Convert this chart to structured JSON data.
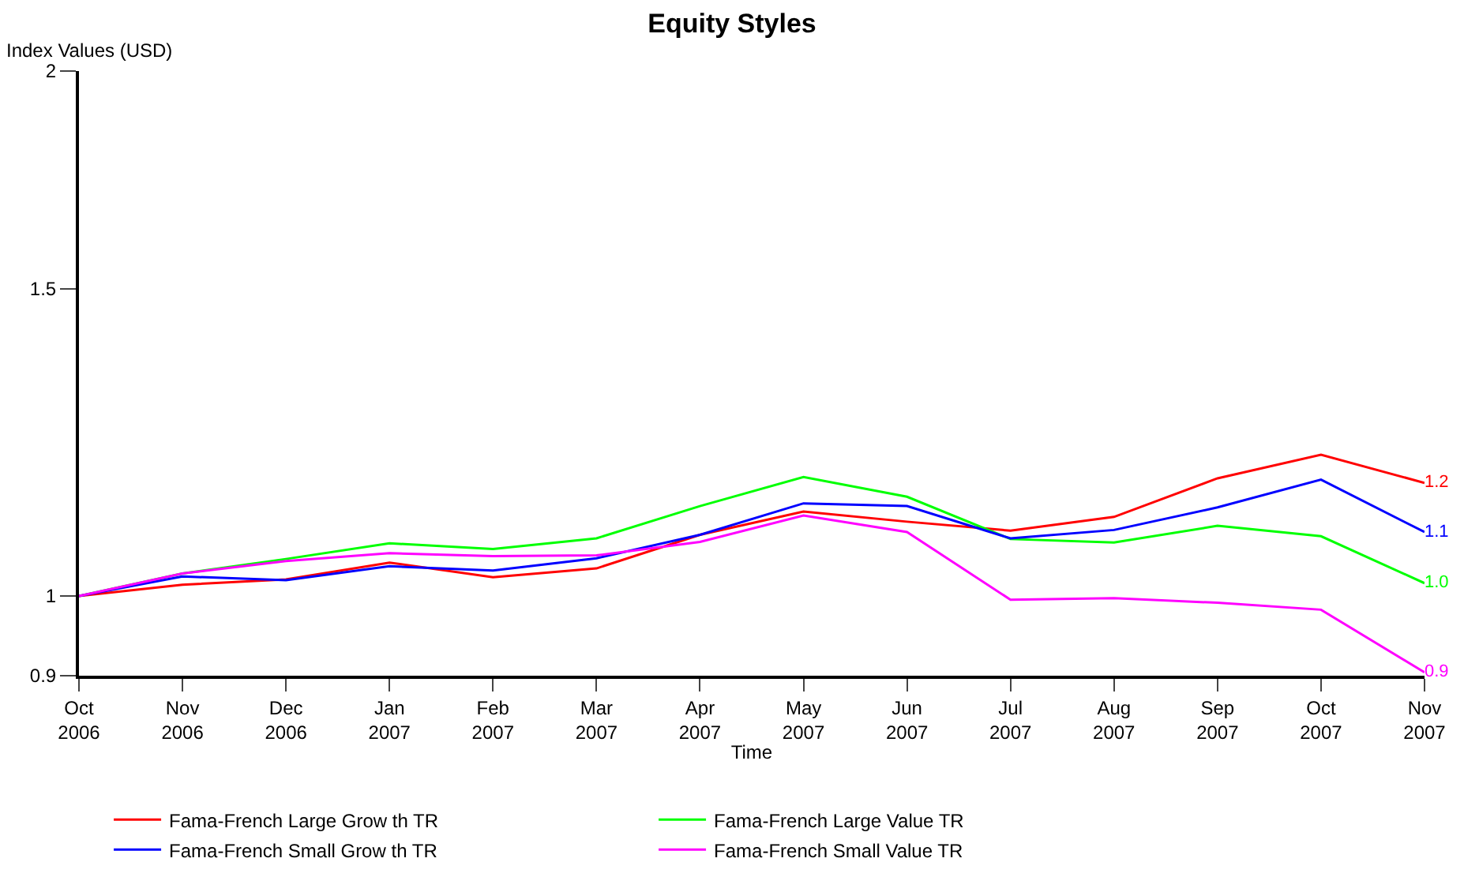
{
  "chart_data": {
    "type": "line",
    "title": "Equity Styles",
    "xlabel": "Time",
    "ylabel": "Index Values (USD)",
    "categories": [
      "Oct 2006",
      "Nov 2006",
      "Dec 2006",
      "Jan 2007",
      "Feb 2007",
      "Mar 2007",
      "Apr 2007",
      "May 2007",
      "Jun 2007",
      "Jul 2007",
      "Aug 2007",
      "Sep 2007",
      "Oct 2007",
      "Nov 2007"
    ],
    "series": [
      {
        "name": "Fama-French Large Grow th TR",
        "color": "#ff0000",
        "values": [
          1.0,
          1.015,
          1.022,
          1.045,
          1.025,
          1.037,
          1.084,
          1.118,
          1.103,
          1.09,
          1.11,
          1.168,
          1.205,
          1.161
        ],
        "value_labels": [
          null,
          null,
          null,
          null,
          null,
          null,
          null,
          null,
          null,
          null,
          null,
          null,
          null,
          "1.2"
        ]
      },
      {
        "name": "Fama-French Large Value TR",
        "color": "#00ff00",
        "values": [
          1.0,
          1.03,
          1.05,
          1.072,
          1.064,
          1.079,
          1.126,
          1.17,
          1.14,
          1.078,
          1.073,
          1.097,
          1.082,
          1.017
        ],
        "value_labels": [
          null,
          null,
          null,
          null,
          null,
          null,
          null,
          null,
          null,
          null,
          null,
          null,
          null,
          "1.0"
        ]
      },
      {
        "name": "Fama-French Small Grow th TR",
        "color": "#0000ff",
        "values": [
          1.0,
          1.026,
          1.021,
          1.04,
          1.034,
          1.051,
          1.084,
          1.13,
          1.126,
          1.079,
          1.091,
          1.124,
          1.166,
          1.088
        ],
        "value_labels": [
          null,
          null,
          null,
          null,
          null,
          null,
          null,
          null,
          null,
          null,
          null,
          null,
          null,
          "1.1"
        ]
      },
      {
        "name": "Fama-French Small Value TR",
        "color": "#ff00ff",
        "values": [
          1.0,
          1.03,
          1.047,
          1.058,
          1.054,
          1.055,
          1.074,
          1.112,
          1.088,
          0.995,
          0.997,
          0.991,
          0.982,
          0.904
        ],
        "value_labels": [
          null,
          null,
          null,
          null,
          null,
          null,
          null,
          null,
          null,
          null,
          null,
          null,
          null,
          "0.9"
        ]
      }
    ],
    "log": "y",
    "ylim": [
      0.9,
      2
    ],
    "yticks": [
      0.9,
      1,
      1.5,
      2
    ],
    "grid": false,
    "legend": "bottom",
    "marker": "none",
    "line_style": "solid"
  }
}
